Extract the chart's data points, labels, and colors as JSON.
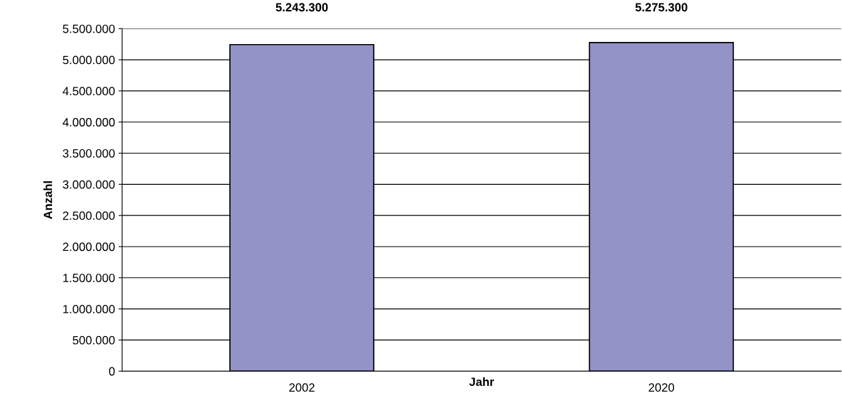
{
  "chart_data": {
    "type": "bar",
    "xlabel": "Jahr",
    "ylabel": "Anzahl",
    "categories": [
      "2002",
      "2020"
    ],
    "values": [
      5243300,
      5275300
    ],
    "color": "#9393c8",
    "value_labels": [
      "5.243.300",
      "5.275.300"
    ],
    "ylim": [
      0,
      5500000
    ],
    "yticks": [
      {
        "value": 0,
        "label": "0"
      },
      {
        "value": 500000,
        "label": "500.000"
      },
      {
        "value": 1000000,
        "label": "1.000.000"
      },
      {
        "value": 1500000,
        "label": "1.500.000"
      },
      {
        "value": 2000000,
        "label": "2.000.000"
      },
      {
        "value": 2500000,
        "label": "2.500.000"
      },
      {
        "value": 3000000,
        "label": "3.000.000"
      },
      {
        "value": 3500000,
        "label": "3.500.000"
      },
      {
        "value": 4000000,
        "label": "4.000.000"
      },
      {
        "value": 4500000,
        "label": "4.500.000"
      },
      {
        "value": 5000000,
        "label": "5.000.000"
      },
      {
        "value": 5500000,
        "label": "5.500.000"
      }
    ],
    "grid": "y"
  }
}
